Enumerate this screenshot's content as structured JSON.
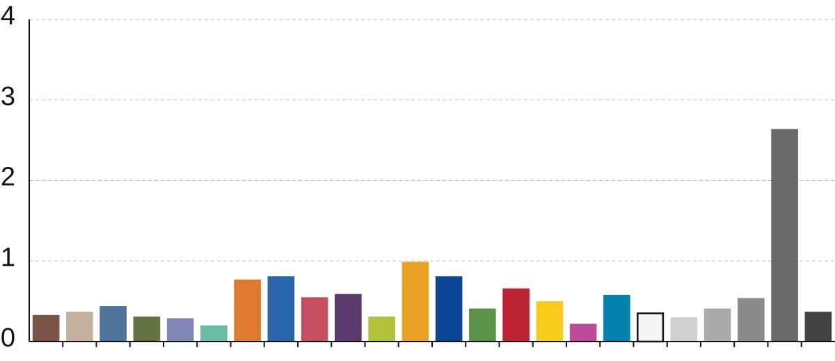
{
  "chart_data": {
    "type": "bar",
    "categories": [
      null,
      null,
      null,
      null,
      null,
      null,
      null,
      null,
      null,
      null,
      null,
      null,
      null,
      null,
      null,
      null,
      null,
      null,
      null,
      null,
      null,
      null,
      null,
      null
    ],
    "values": [
      0.33,
      0.37,
      0.44,
      0.31,
      0.29,
      0.2,
      0.77,
      0.81,
      0.55,
      0.59,
      0.31,
      0.99,
      0.81,
      0.41,
      0.66,
      0.5,
      0.22,
      0.58,
      0.35,
      0.3,
      0.41,
      0.54,
      2.64,
      0.37
    ],
    "colors": [
      "#7b5347",
      "#c4b19d",
      "#4e7399",
      "#607341",
      "#8387b6",
      "#6abba3",
      "#de7a2f",
      "#2a65ac",
      "#c54f60",
      "#5a3a6e",
      "#b5c03a",
      "#e8a227",
      "#0c4594",
      "#5b9448",
      "#bb2437",
      "#f7cc1b",
      "#bb4b98",
      "#0482ad",
      "#f5f5f5",
      "#cfd0d2",
      "#a9aaac",
      "#898a8c",
      "#68696b",
      "#434345"
    ],
    "ylim": [
      0,
      4
    ],
    "yticks": [
      0,
      1,
      2,
      3,
      4
    ],
    "grid": true
  }
}
